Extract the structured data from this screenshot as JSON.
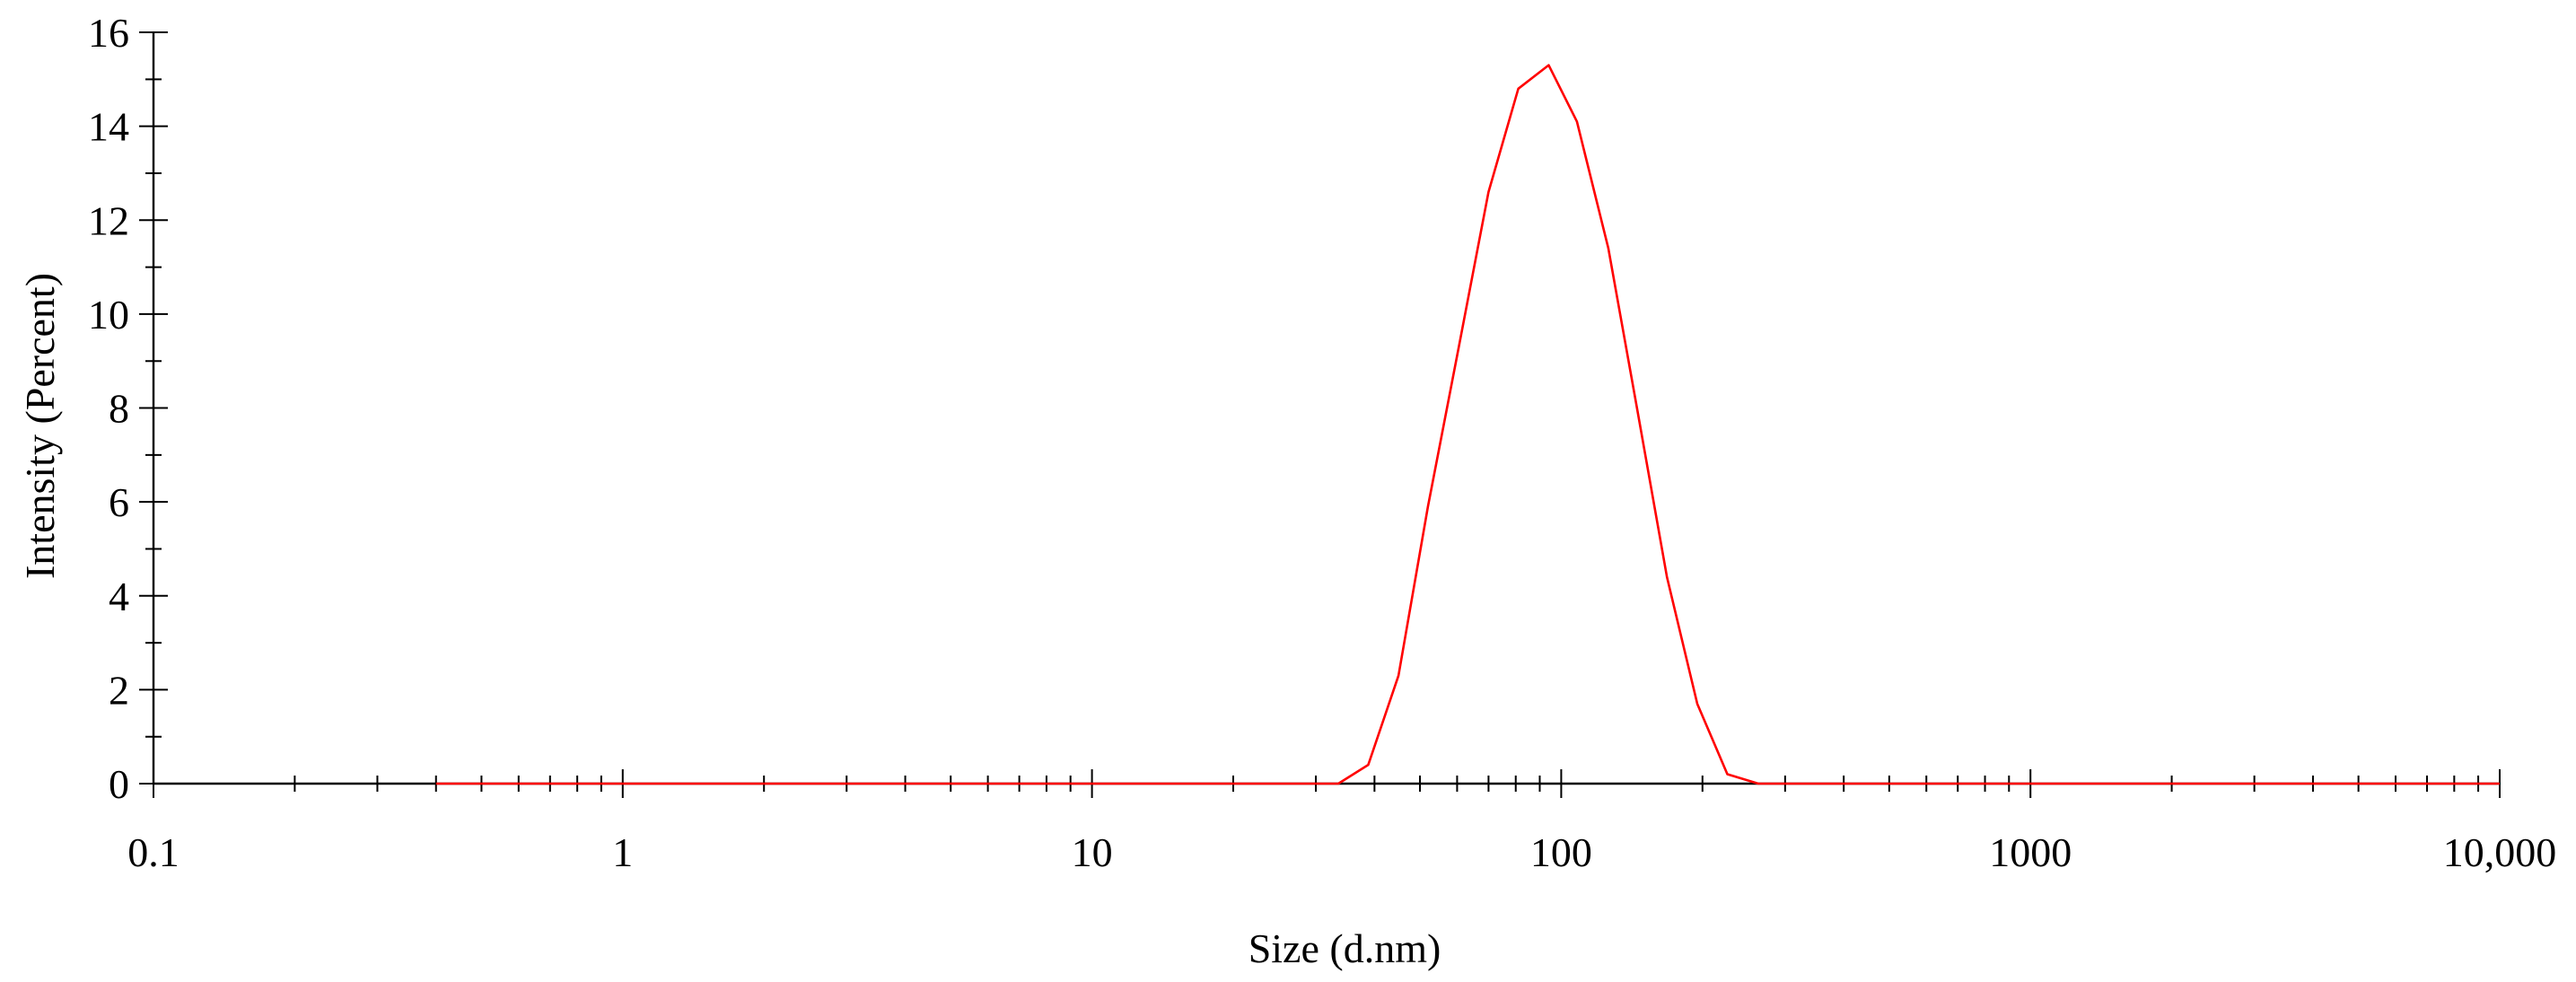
{
  "chart_data": {
    "type": "line",
    "title": "",
    "xlabel": "Size (d.nm)",
    "ylabel": "Intensity (Percent)",
    "x_scale": "log",
    "xlim": [
      0.1,
      10000
    ],
    "ylim": [
      0,
      16
    ],
    "grid": false,
    "x_ticks": [
      {
        "value": 0.1,
        "label": "0.1"
      },
      {
        "value": 1,
        "label": "1"
      },
      {
        "value": 10,
        "label": "10"
      },
      {
        "value": 100,
        "label": "100"
      },
      {
        "value": 1000,
        "label": "1000"
      },
      {
        "value": 10000,
        "label": "10,000"
      }
    ],
    "y_ticks": [
      {
        "value": 0,
        "label": "0"
      },
      {
        "value": 2,
        "label": "2"
      },
      {
        "value": 4,
        "label": "4"
      },
      {
        "value": 6,
        "label": "6"
      },
      {
        "value": 8,
        "label": "8"
      },
      {
        "value": 10,
        "label": "10"
      },
      {
        "value": 12,
        "label": "12"
      },
      {
        "value": 14,
        "label": "14"
      },
      {
        "value": 16,
        "label": "16"
      }
    ],
    "series": [
      {
        "color": "#ff0000",
        "x": [
          0.4,
          0.5,
          0.6,
          0.8,
          1,
          2,
          5,
          10,
          20,
          33.5,
          38.8,
          45,
          52,
          60.5,
          70,
          81,
          94,
          108,
          126,
          145,
          168,
          195,
          226,
          263,
          300,
          500,
          1000,
          2000,
          5000,
          10000
        ],
        "y": [
          0,
          0,
          0,
          0,
          0,
          0,
          0,
          0,
          0,
          0,
          0.4,
          2.3,
          5.9,
          9.3,
          12.6,
          14.8,
          15.3,
          14.1,
          11.4,
          8.0,
          4.4,
          1.7,
          0.2,
          0,
          0,
          0,
          0,
          0,
          0,
          0
        ]
      }
    ]
  }
}
